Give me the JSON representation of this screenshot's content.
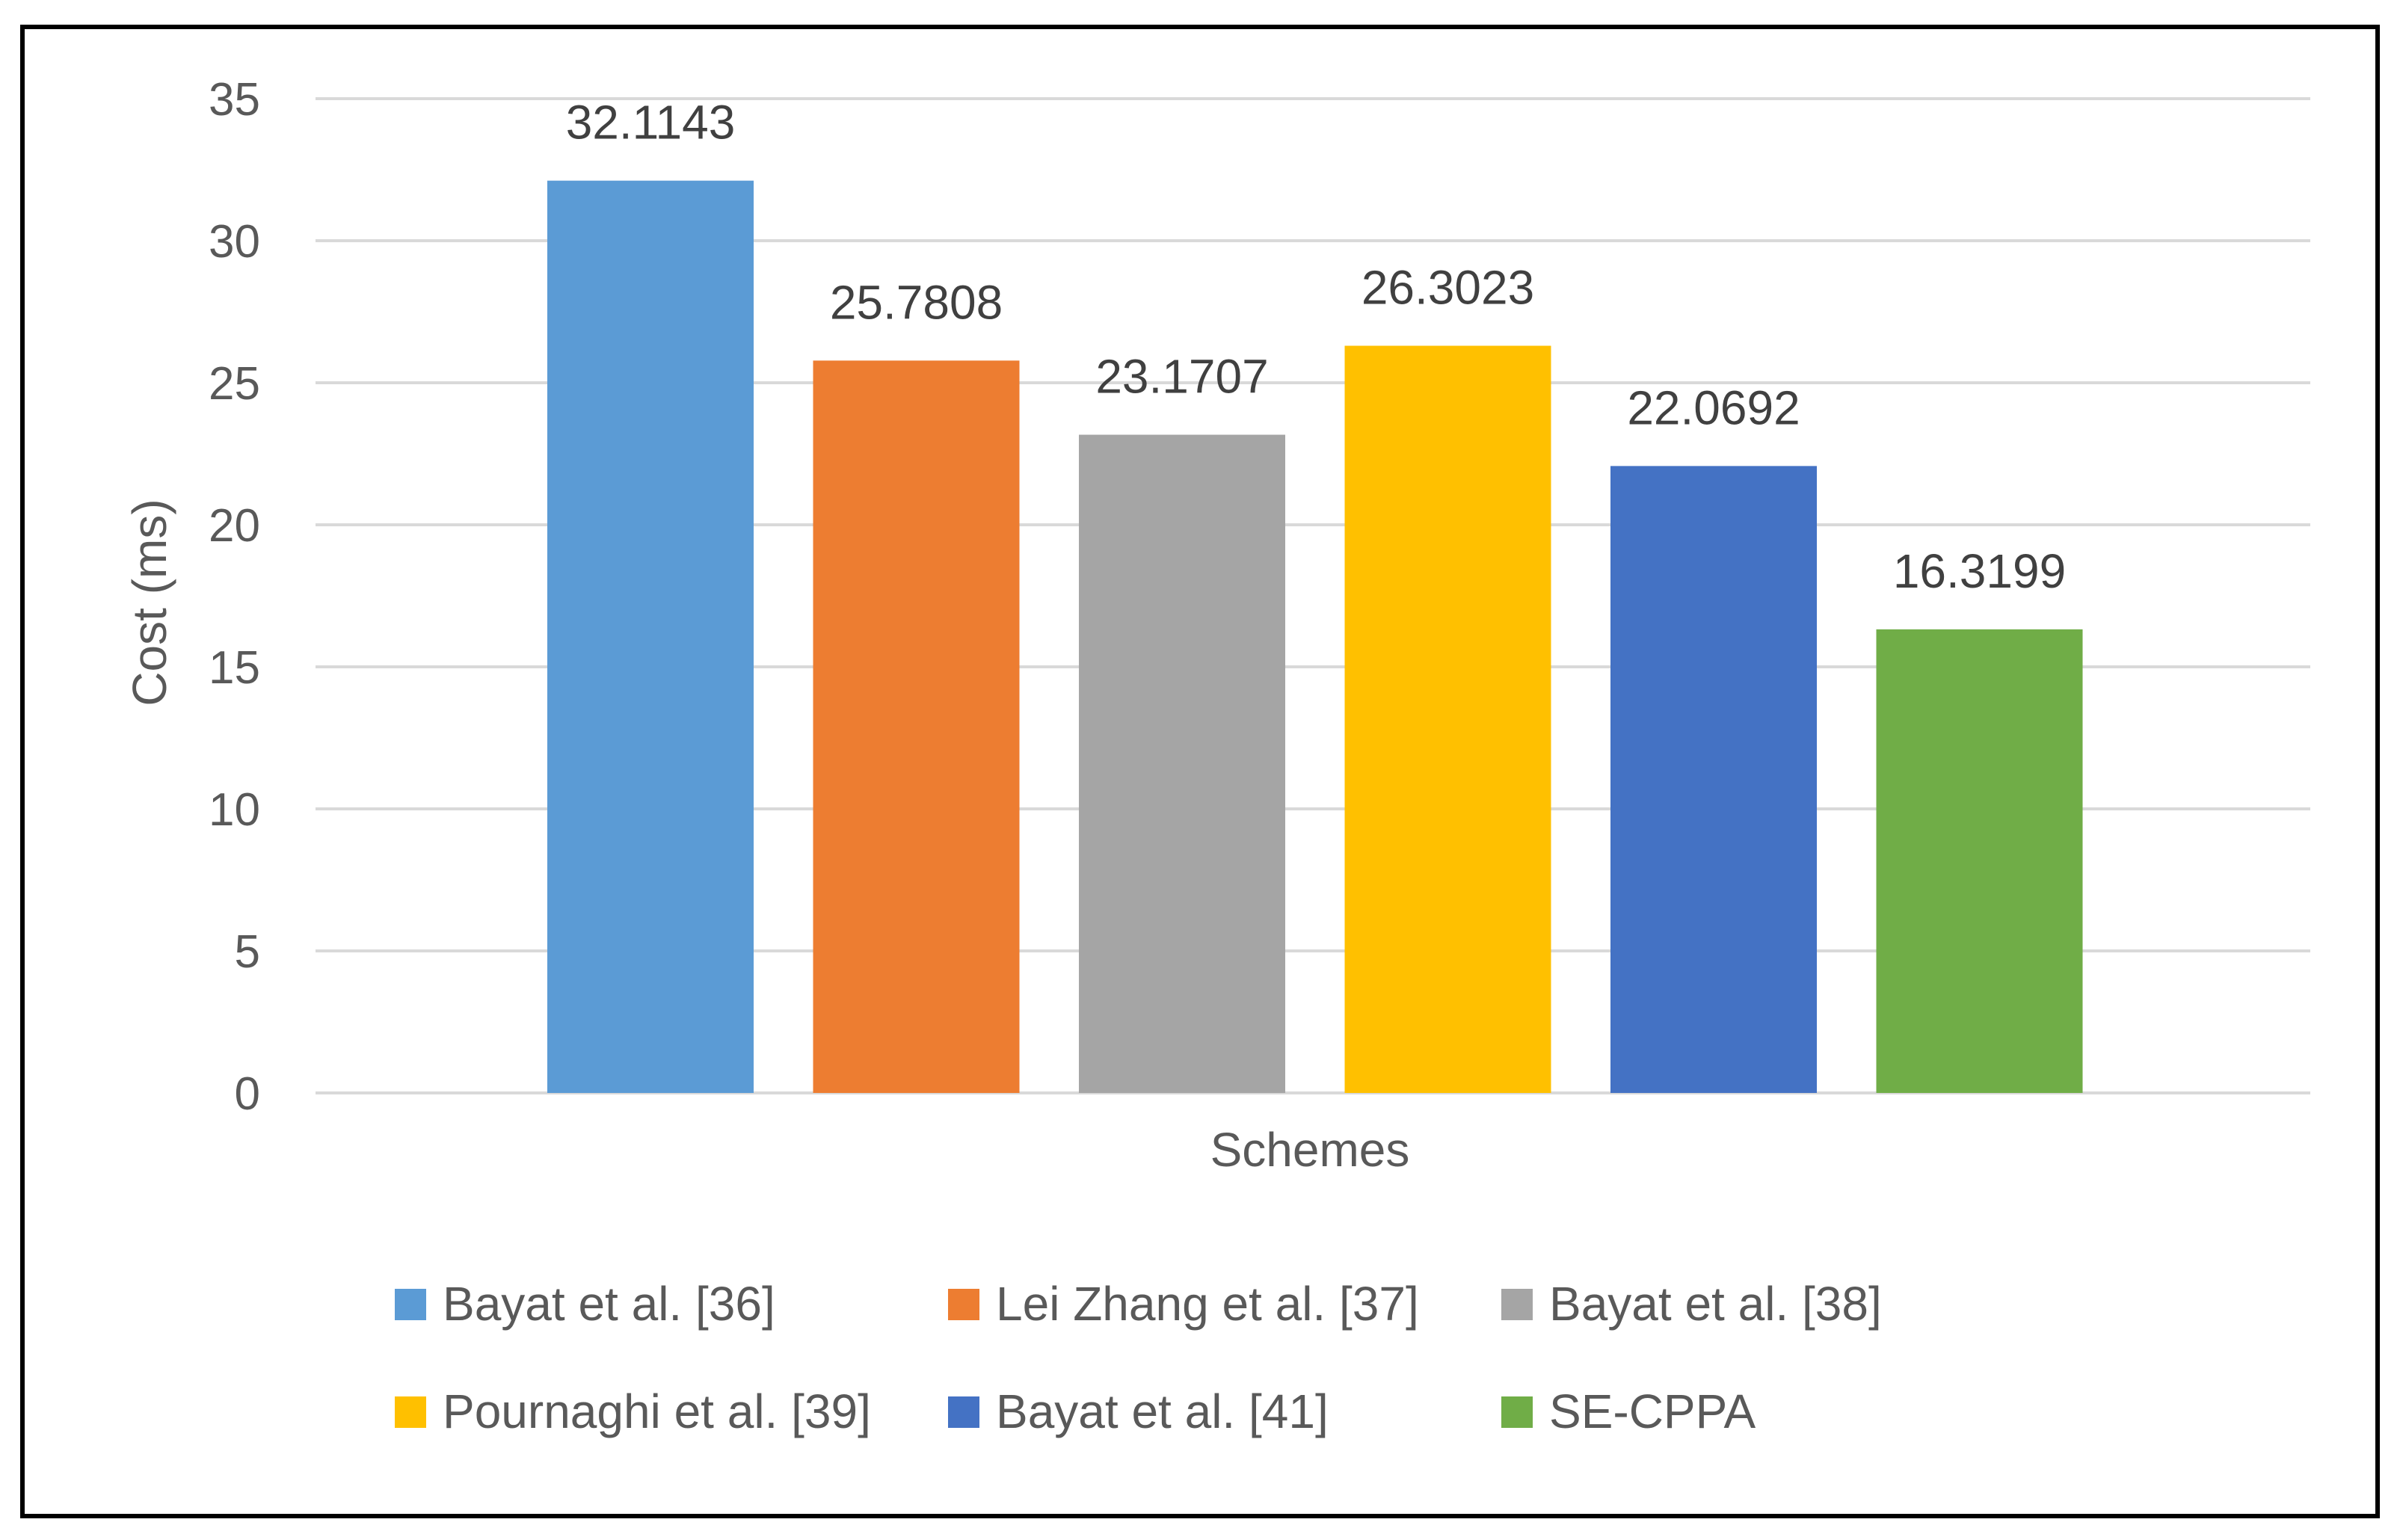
{
  "chart_data": {
    "type": "bar",
    "title": "",
    "xlabel": "Schemes",
    "ylabel": "Cost (ms)",
    "ylim": [
      0,
      35
    ],
    "yticks": [
      0,
      5,
      10,
      15,
      20,
      25,
      30,
      35
    ],
    "grid": true,
    "legend_position": "bottom",
    "series": [
      {
        "name": "Bayat et al. [36]",
        "value": 32.1143,
        "label": "32.1143",
        "color": "#5b9bd5"
      },
      {
        "name": "Lei Zhang et al. [37]",
        "value": 25.7808,
        "label": "25.7808",
        "color": "#ed7d31"
      },
      {
        "name": "Bayat et al. [38]",
        "value": 23.1707,
        "label": "23.1707",
        "color": "#a5a5a5"
      },
      {
        "name": "Pournaghi et al. [39]",
        "value": 26.3023,
        "label": "26.3023",
        "color": "#ffc000"
      },
      {
        "name": "Bayat et al. [41]",
        "value": 22.0692,
        "label": "22.0692",
        "color": "#4472c4"
      },
      {
        "name": "SE-CPPA",
        "value": 16.3199,
        "label": "16.3199",
        "color": "#70ad47"
      }
    ]
  }
}
